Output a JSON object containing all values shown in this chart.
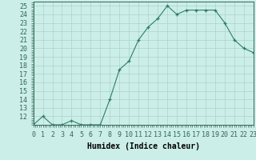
{
  "x": [
    0,
    1,
    2,
    3,
    4,
    5,
    6,
    7,
    8,
    9,
    10,
    11,
    12,
    13,
    14,
    15,
    16,
    17,
    18,
    19,
    20,
    21,
    22,
    23
  ],
  "y": [
    11,
    12,
    11,
    11,
    11.5,
    11,
    11,
    11,
    14,
    17.5,
    18.5,
    21,
    22.5,
    23.5,
    25,
    24,
    24.5,
    24.5,
    24.5,
    24.5,
    23,
    21,
    20,
    19.5
  ],
  "line_color": "#2d7d6b",
  "marker": "+",
  "bg_color": "#cceee8",
  "grid_major_color": "#aad4cc",
  "grid_minor_color": "#c0e5de",
  "xlabel": "Humidex (Indice chaleur)",
  "xlim": [
    0,
    23
  ],
  "ylim": [
    11,
    25.5
  ],
  "yticks": [
    12,
    13,
    14,
    15,
    16,
    17,
    18,
    19,
    20,
    21,
    22,
    23,
    24,
    25
  ],
  "xtick_labels": [
    "0",
    "1",
    "2",
    "3",
    "4",
    "5",
    "6",
    "7",
    "8",
    "9",
    "10",
    "11",
    "12",
    "13",
    "14",
    "15",
    "16",
    "17",
    "18",
    "19",
    "20",
    "21",
    "22",
    "23"
  ],
  "axis_label_fontsize": 7,
  "tick_fontsize": 6
}
